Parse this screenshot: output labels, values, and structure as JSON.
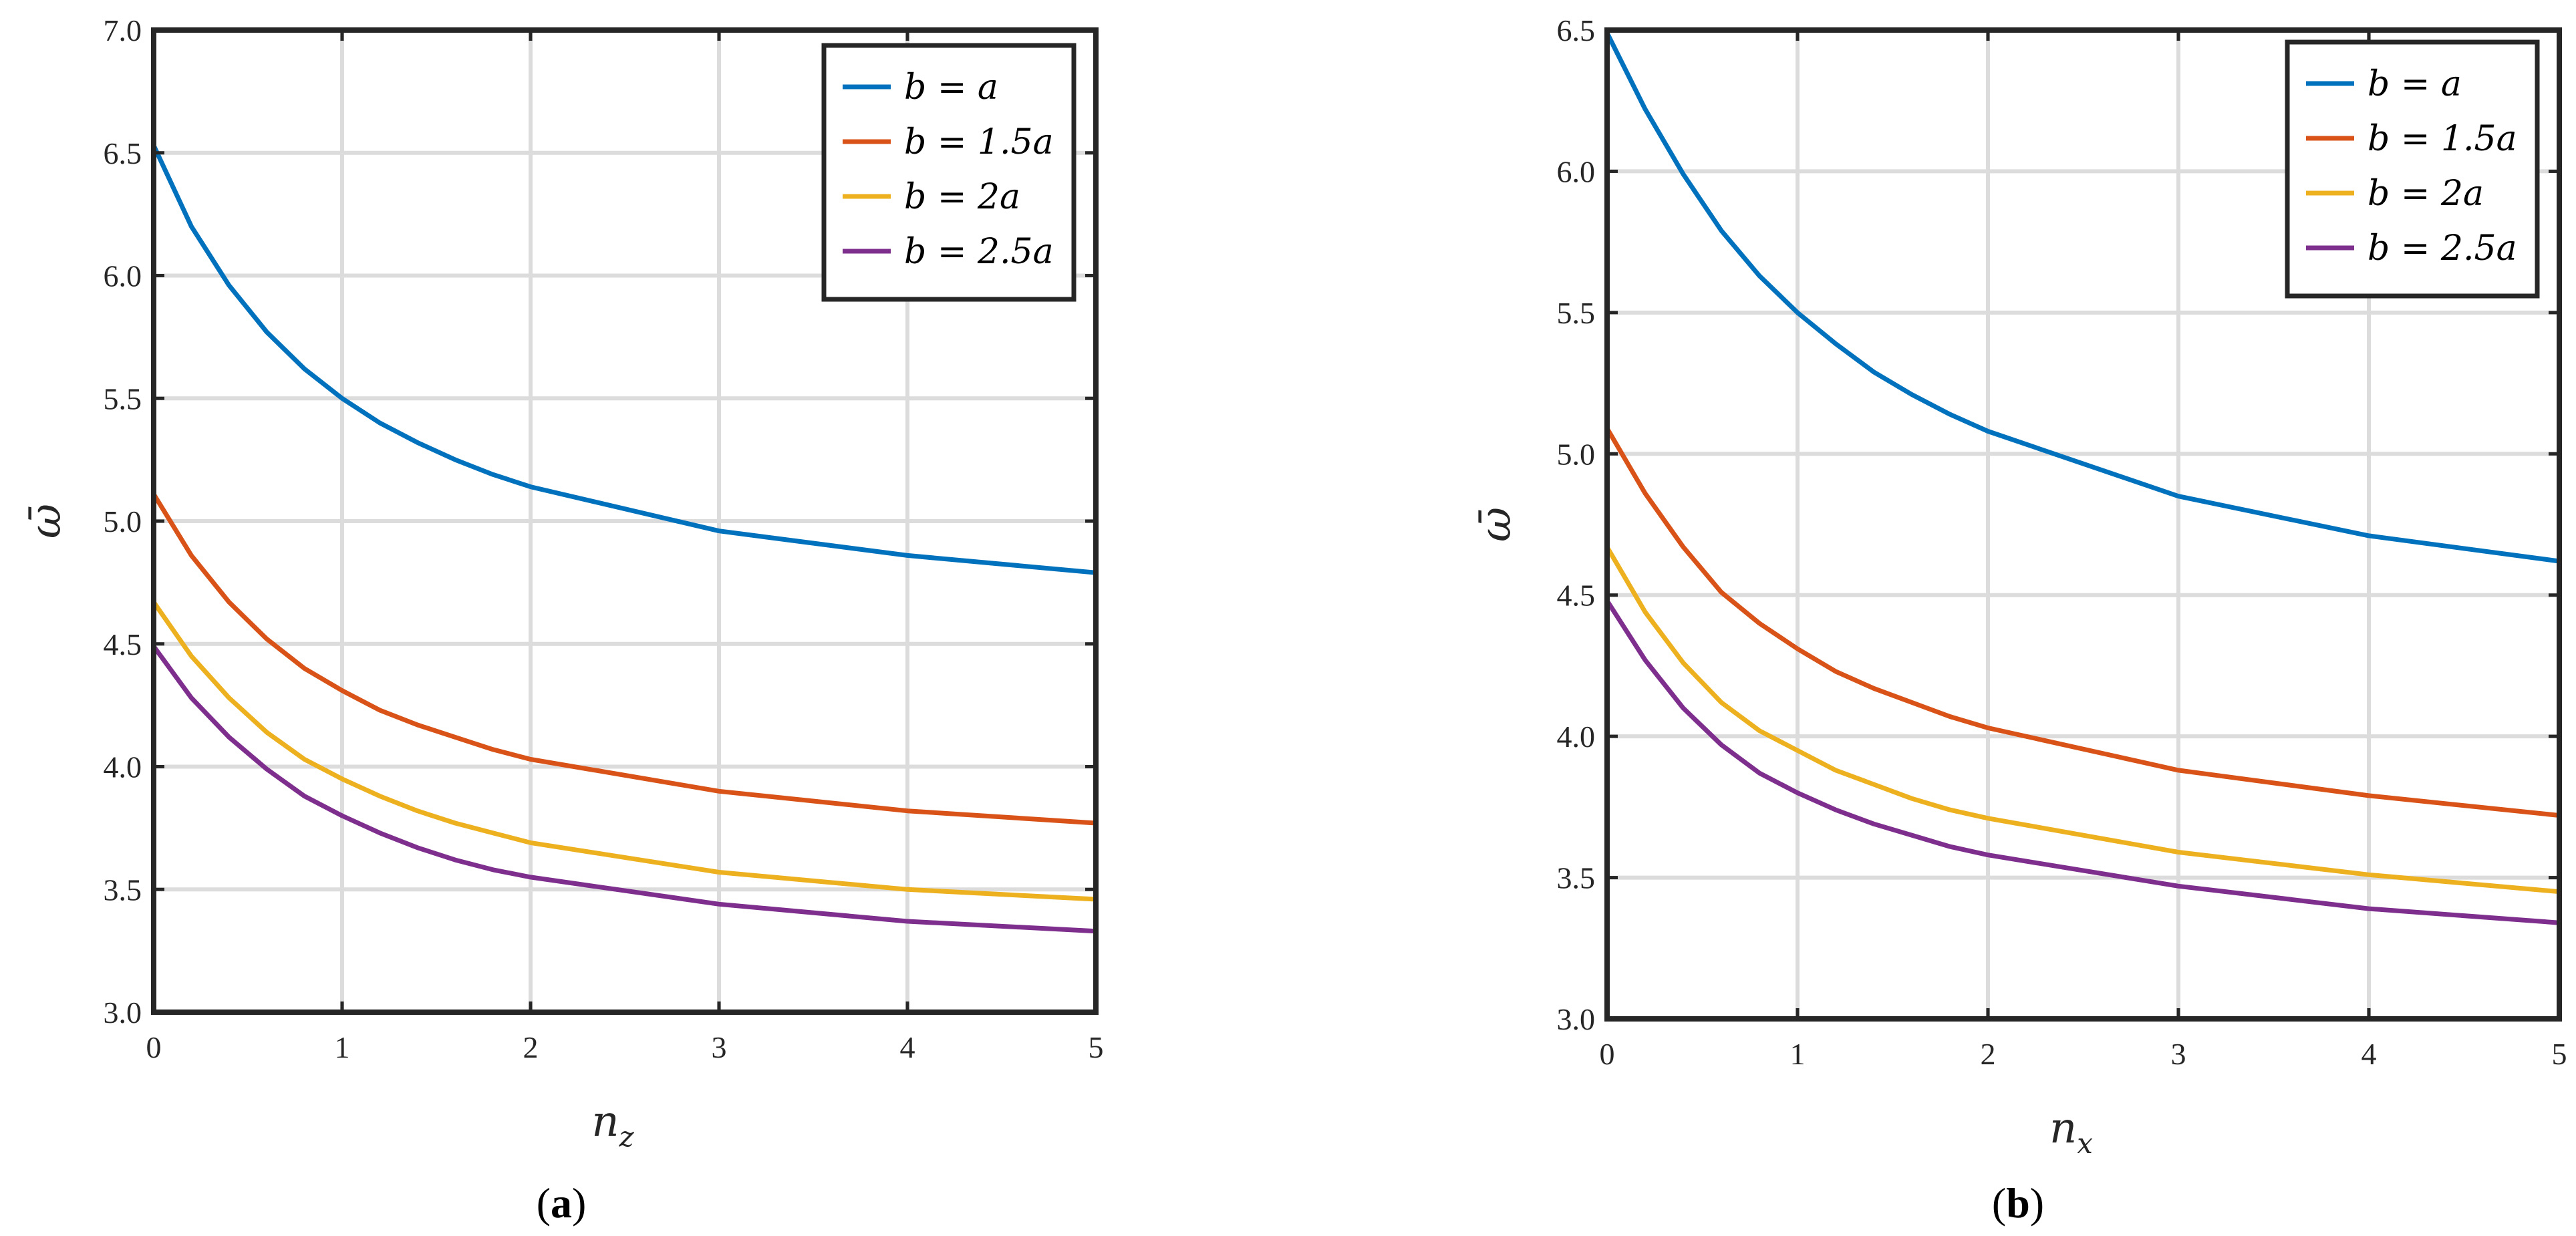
{
  "chart_data": [
    {
      "type": "line",
      "caption_letter": "a",
      "xlabel": {
        "base": "n",
        "sub": "z"
      },
      "ylabel": "ω̄",
      "xlim": [
        0,
        5
      ],
      "ylim": [
        3.0,
        7.0
      ],
      "xticks": [
        "0",
        "1",
        "2",
        "3",
        "4",
        "5"
      ],
      "yticks": [
        "3.0",
        "3.5",
        "4.0",
        "4.5",
        "5.0",
        "5.5",
        "6.0",
        "6.5",
        "7.0"
      ],
      "grid": true,
      "legend_position": "top-right",
      "x": [
        0,
        0.2,
        0.4,
        0.6,
        0.8,
        1.0,
        1.2,
        1.4,
        1.6,
        1.8,
        2.0,
        3.0,
        4.0,
        5.0
      ],
      "series": [
        {
          "name": "b = a",
          "color": "#0072BD",
          "values": [
            6.53,
            6.2,
            5.96,
            5.77,
            5.62,
            5.5,
            5.4,
            5.32,
            5.25,
            5.19,
            5.14,
            4.96,
            4.86,
            4.79
          ]
        },
        {
          "name": "b = 1.5a",
          "color": "#D95319",
          "values": [
            5.11,
            4.86,
            4.67,
            4.52,
            4.4,
            4.31,
            4.23,
            4.17,
            4.12,
            4.07,
            4.03,
            3.9,
            3.82,
            3.77
          ]
        },
        {
          "name": "b = 2a",
          "color": "#EDB120",
          "values": [
            4.67,
            4.45,
            4.28,
            4.14,
            4.03,
            3.95,
            3.88,
            3.82,
            3.77,
            3.73,
            3.69,
            3.57,
            3.5,
            3.46
          ]
        },
        {
          "name": "b = 2.5a",
          "color": "#7E2F8E",
          "values": [
            4.49,
            4.28,
            4.12,
            3.99,
            3.88,
            3.8,
            3.73,
            3.67,
            3.62,
            3.58,
            3.55,
            3.44,
            3.37,
            3.33
          ]
        }
      ]
    },
    {
      "type": "line",
      "caption_letter": "b",
      "xlabel": {
        "base": "n",
        "sub": "x"
      },
      "ylabel": "ω̄",
      "xlim": [
        0,
        5
      ],
      "ylim": [
        3.0,
        6.5
      ],
      "xticks": [
        "0",
        "1",
        "2",
        "3",
        "4",
        "5"
      ],
      "yticks": [
        "3.0",
        "3.5",
        "4.0",
        "4.5",
        "5.0",
        "5.5",
        "6.0",
        "6.5"
      ],
      "grid": true,
      "legend_position": "top-right",
      "x": [
        0,
        0.2,
        0.4,
        0.6,
        0.8,
        1.0,
        1.2,
        1.4,
        1.6,
        1.8,
        2.0,
        3.0,
        4.0,
        5.0
      ],
      "series": [
        {
          "name": "b = a",
          "color": "#0072BD",
          "values": [
            6.49,
            6.22,
            5.99,
            5.79,
            5.63,
            5.5,
            5.39,
            5.29,
            5.21,
            5.14,
            5.08,
            4.85,
            4.71,
            4.62
          ]
        },
        {
          "name": "b = 1.5a",
          "color": "#D95319",
          "values": [
            5.09,
            4.86,
            4.67,
            4.51,
            4.4,
            4.31,
            4.23,
            4.17,
            4.12,
            4.07,
            4.03,
            3.88,
            3.79,
            3.72
          ]
        },
        {
          "name": "b = 2a",
          "color": "#EDB120",
          "values": [
            4.67,
            4.44,
            4.26,
            4.12,
            4.02,
            3.95,
            3.88,
            3.83,
            3.78,
            3.74,
            3.71,
            3.59,
            3.51,
            3.45
          ]
        },
        {
          "name": "b = 2.5a",
          "color": "#7E2F8E",
          "values": [
            4.48,
            4.27,
            4.1,
            3.97,
            3.87,
            3.8,
            3.74,
            3.69,
            3.65,
            3.61,
            3.58,
            3.47,
            3.39,
            3.34
          ]
        }
      ]
    }
  ]
}
